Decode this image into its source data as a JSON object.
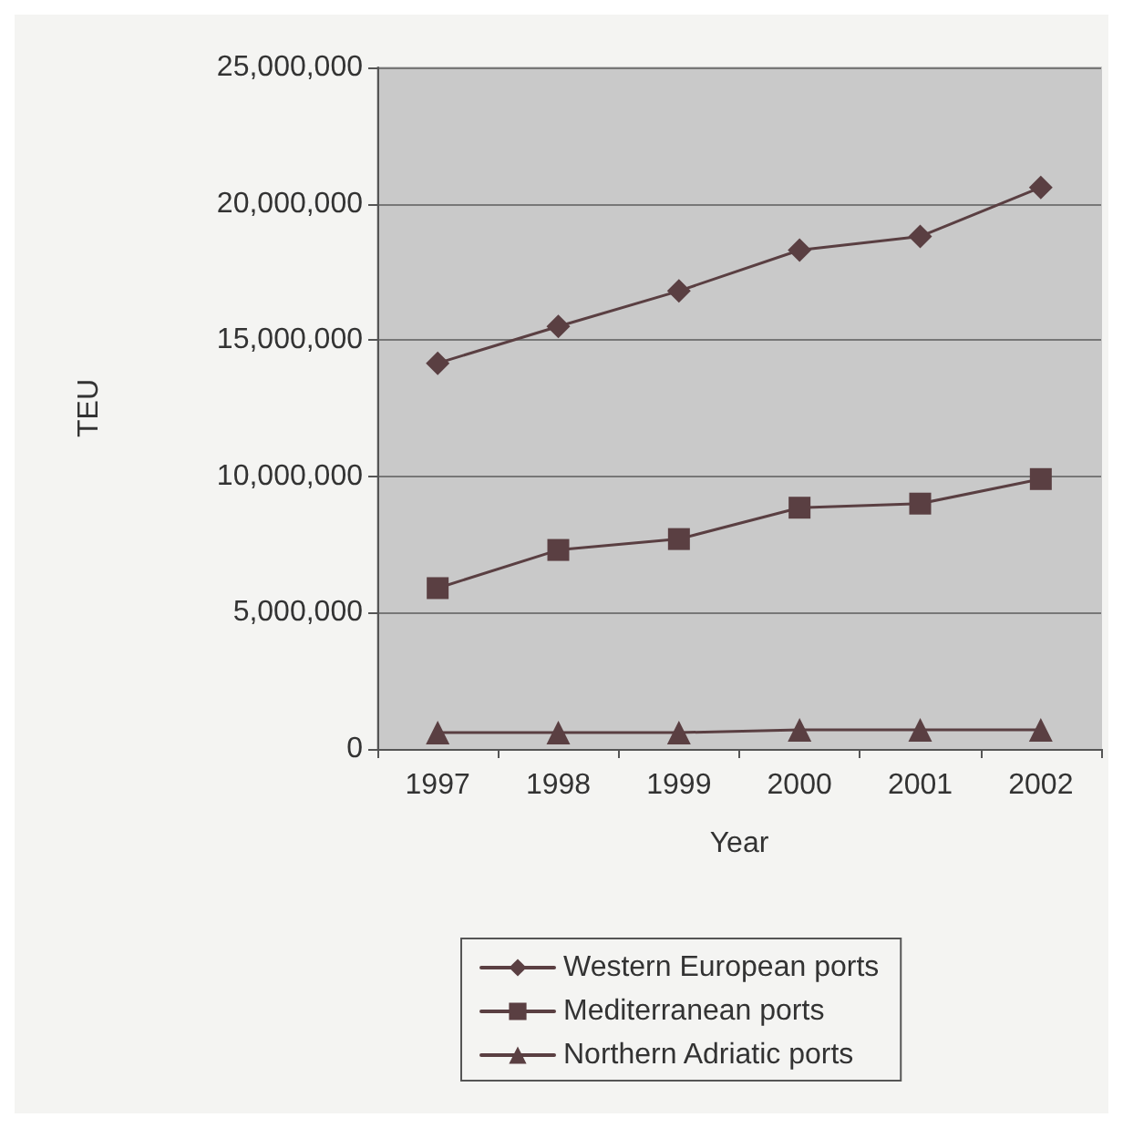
{
  "chart_data": {
    "type": "line",
    "xlabel": "Year",
    "ylabel": "TEU",
    "categories": [
      "1997",
      "1998",
      "1999",
      "2000",
      "2001",
      "2002"
    ],
    "ylim": [
      0,
      25000000
    ],
    "yticks": [
      0,
      {
        "value": 5000000,
        "label": "5,000,000"
      },
      {
        "value": 10000000,
        "label": "10,000,000"
      },
      {
        "value": 15000000,
        "label": "15,000,000"
      },
      {
        "value": 20000000,
        "label": "20,000,000"
      },
      {
        "value": 25000000,
        "label": "25,000,000"
      }
    ],
    "grid": "y",
    "legend": "bottom",
    "line_style": "solid",
    "series": [
      {
        "name": "Western European ports",
        "color": "#5a3f42",
        "marker": "diamond",
        "values": [
          14150000,
          15500000,
          16800000,
          18300000,
          18800000,
          20600000
        ]
      },
      {
        "name": "Mediterranean ports",
        "color": "#5a3f42",
        "marker": "square",
        "values": [
          5900000,
          7300000,
          7700000,
          8850000,
          9000000,
          9900000
        ]
      },
      {
        "name": "Northern Adriatic ports",
        "color": "#5a3f42",
        "marker": "triangle",
        "values": [
          600000,
          600000,
          600000,
          700000,
          700000,
          700000
        ]
      }
    ]
  }
}
